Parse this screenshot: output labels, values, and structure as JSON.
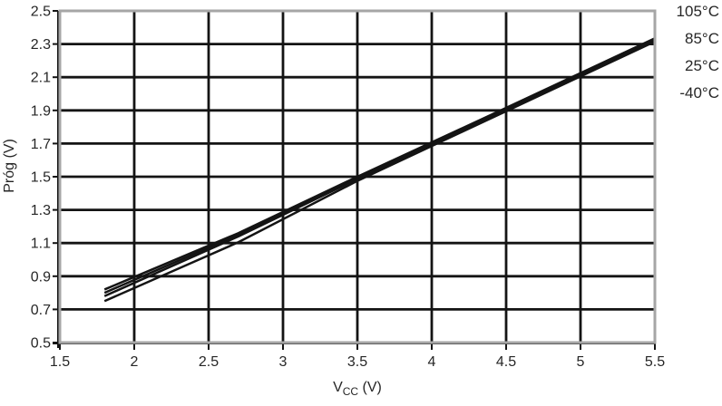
{
  "page": {
    "background": "#ffffff"
  },
  "axes": {
    "y_title": "Próg (V)",
    "x_title": {
      "base": "V",
      "sub": "CC",
      "suffix": " (V)"
    }
  },
  "colors": {
    "line": "#141414",
    "grid": "#141414",
    "frame": "#a6a6a6",
    "text": "#262626"
  },
  "chart_data": {
    "type": "line",
    "title": "",
    "xlabel": "VCC (V)",
    "ylabel": "Próg (V)",
    "x": [
      1.8,
      2.7,
      3.5,
      4.5,
      5.5
    ],
    "series": [
      {
        "name": "105°C",
        "values": [
          0.82,
          1.16,
          1.5,
          1.915,
          2.335
        ]
      },
      {
        "name": "85°C",
        "values": [
          0.8,
          1.15,
          1.493,
          1.91,
          2.33
        ]
      },
      {
        "name": "25°C",
        "values": [
          0.78,
          1.14,
          1.487,
          1.905,
          2.325
        ]
      },
      {
        "name": "-40°C",
        "values": [
          0.75,
          1.105,
          1.475,
          1.895,
          2.315
        ]
      }
    ],
    "xlim": [
      1.5,
      5.5
    ],
    "ylim": [
      0.5,
      2.5
    ],
    "x_ticks": [
      "1.5",
      "2",
      "2.5",
      "3",
      "3.5",
      "4",
      "4.5",
      "5",
      "5.5"
    ],
    "y_ticks": [
      "2.5",
      "2.3",
      "2.1",
      "1.9",
      "1.7",
      "1.5",
      "1.3",
      "1.1",
      "0.9",
      "0.7",
      "0.5"
    ],
    "x_tick_values": [
      1.5,
      2,
      2.5,
      3,
      3.5,
      4,
      4.5,
      5,
      5.5
    ],
    "y_tick_values": [
      2.5,
      2.3,
      2.1,
      1.9,
      1.7,
      1.5,
      1.3,
      1.1,
      0.9,
      0.7,
      0.5
    ],
    "grid": true,
    "line_color": "black",
    "legend_position": "right-top-outside"
  }
}
